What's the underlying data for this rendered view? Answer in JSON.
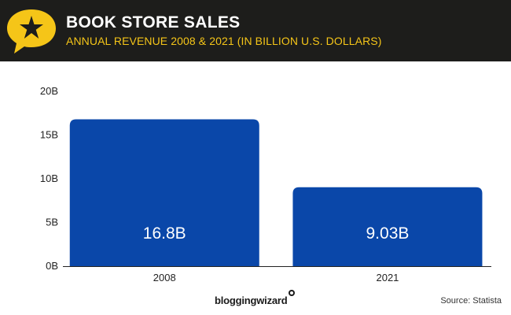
{
  "header": {
    "title": "BOOK STORE SALES",
    "subtitle": "ANNUAL REVENUE 2008 & 2021 (IN BILLION U.S. DOLLARS)",
    "logo_icon": "star-speech-bubble-icon"
  },
  "colors": {
    "header_bg": "#1d1d1b",
    "accent_yellow": "#f5c518",
    "bar": "#0a47a9"
  },
  "chart_data": {
    "type": "bar",
    "categories": [
      "2008",
      "2021"
    ],
    "values": [
      16.8,
      9.03
    ],
    "data_labels": [
      "16.8B",
      "9.03B"
    ],
    "title": "BOOK STORE SALES",
    "subtitle": "ANNUAL REVENUE 2008 & 2021 (IN BILLION U.S. DOLLARS)",
    "xlabel": "",
    "ylabel": "",
    "ylim": [
      0,
      20
    ],
    "yticks": [
      0,
      5,
      10,
      15,
      20
    ],
    "ytick_labels": [
      "0B",
      "5B",
      "10B",
      "15B",
      "20B"
    ],
    "grid": false,
    "legend": "none"
  },
  "footer": {
    "brand": "bloggingwizard",
    "source": "Source: Statista"
  }
}
